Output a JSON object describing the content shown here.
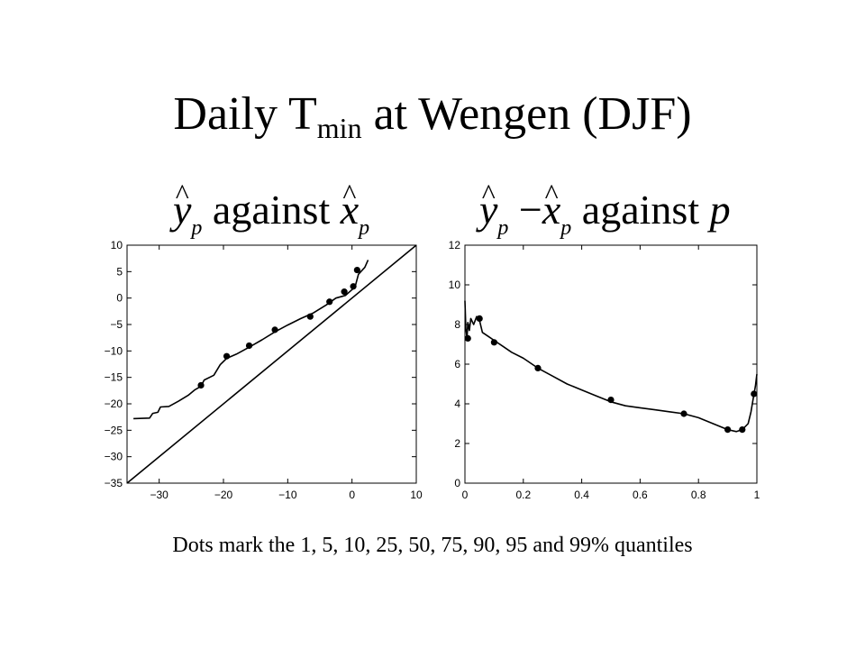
{
  "slide": {
    "title_main": "Daily T",
    "title_sub": "min",
    "title_rest": "at Wengen (DJF)",
    "footnote": "Dots mark the 1, 5, 10, 25, 50, 75, 90, 95 and 99% quantiles"
  },
  "panel_titles": {
    "left": {
      "y": "y",
      "p1": "p",
      "against": "against",
      "x": "x",
      "p2": "p"
    },
    "right": {
      "y": "y",
      "p1": "p",
      "minus": "−",
      "x": "x",
      "p2": "p",
      "against": "against",
      "p3": "p"
    }
  },
  "colors": {
    "line": "#000000",
    "background": "#ffffff"
  },
  "chart_data": [
    {
      "type": "line",
      "title": "",
      "xlabel": "",
      "ylabel": "",
      "xlim": [
        -35,
        10
      ],
      "ylim": [
        -35,
        10
      ],
      "xticks": [
        -30,
        -20,
        -10,
        0,
        10
      ],
      "yticks": [
        -35,
        -30,
        -25,
        -20,
        -15,
        -10,
        -5,
        0,
        5,
        10
      ],
      "grid": false,
      "series": [
        {
          "x": [
            -34.0,
            -31.5,
            -31.0,
            -30.2,
            -29.8,
            -28.5,
            -27.0,
            -25.5,
            -24.5,
            -23.5,
            -23.0,
            -21.5,
            -20.5,
            -19.5,
            -18.0,
            -16.0,
            -14.0,
            -12.0,
            -10.0,
            -8.0,
            -6.0,
            -4.0,
            -2.5,
            -1.0,
            0.0,
            0.5,
            1.0,
            2.0,
            2.5
          ],
          "y": [
            -22.8,
            -22.7,
            -21.8,
            -21.6,
            -20.6,
            -20.5,
            -19.5,
            -18.4,
            -17.4,
            -16.7,
            -15.5,
            -14.6,
            -12.6,
            -11.4,
            -10.6,
            -9.3,
            -7.9,
            -6.4,
            -5.1,
            -3.9,
            -2.8,
            -1.3,
            0.0,
            0.5,
            1.6,
            2.2,
            4.5,
            5.8,
            7.2
          ]
        },
        {
          "x": [
            -35,
            10
          ],
          "y": [
            -35,
            10
          ]
        }
      ],
      "markers": {
        "x": [
          -23.5,
          -19.5,
          -16.0,
          -12.0,
          -6.5,
          -3.5,
          -1.2,
          0.2,
          0.8
        ],
        "y": [
          -16.5,
          -11.0,
          -9.0,
          -6.0,
          -3.5,
          -0.7,
          1.2,
          2.2,
          5.3
        ]
      }
    },
    {
      "type": "line",
      "title": "",
      "xlabel": "",
      "ylabel": "",
      "xlim": [
        0,
        1
      ],
      "ylim": [
        0,
        12
      ],
      "xticks": [
        0,
        0.2,
        0.4,
        0.6,
        0.8,
        1
      ],
      "yticks": [
        0,
        2,
        4,
        6,
        8,
        10,
        12
      ],
      "grid": false,
      "series": [
        {
          "x": [
            0.0,
            0.003,
            0.007,
            0.01,
            0.015,
            0.02,
            0.03,
            0.04,
            0.05,
            0.06,
            0.08,
            0.1,
            0.13,
            0.16,
            0.2,
            0.25,
            0.3,
            0.35,
            0.4,
            0.45,
            0.5,
            0.55,
            0.6,
            0.65,
            0.7,
            0.75,
            0.8,
            0.85,
            0.9,
            0.93,
            0.95,
            0.97,
            0.98,
            0.99,
            0.995,
            1.0
          ],
          "y": [
            9.2,
            7.8,
            7.3,
            8.1,
            7.7,
            8.3,
            8.0,
            8.4,
            8.2,
            7.6,
            7.4,
            7.2,
            6.9,
            6.6,
            6.3,
            5.8,
            5.4,
            5.0,
            4.7,
            4.4,
            4.1,
            3.9,
            3.8,
            3.7,
            3.6,
            3.5,
            3.3,
            3.0,
            2.7,
            2.6,
            2.7,
            3.0,
            3.6,
            4.5,
            4.9,
            5.5
          ]
        }
      ],
      "markers": {
        "x": [
          0.01,
          0.05,
          0.1,
          0.25,
          0.5,
          0.75,
          0.9,
          0.95,
          0.99
        ],
        "y": [
          7.3,
          8.3,
          7.1,
          5.8,
          4.2,
          3.5,
          2.7,
          2.7,
          4.5
        ]
      }
    }
  ]
}
